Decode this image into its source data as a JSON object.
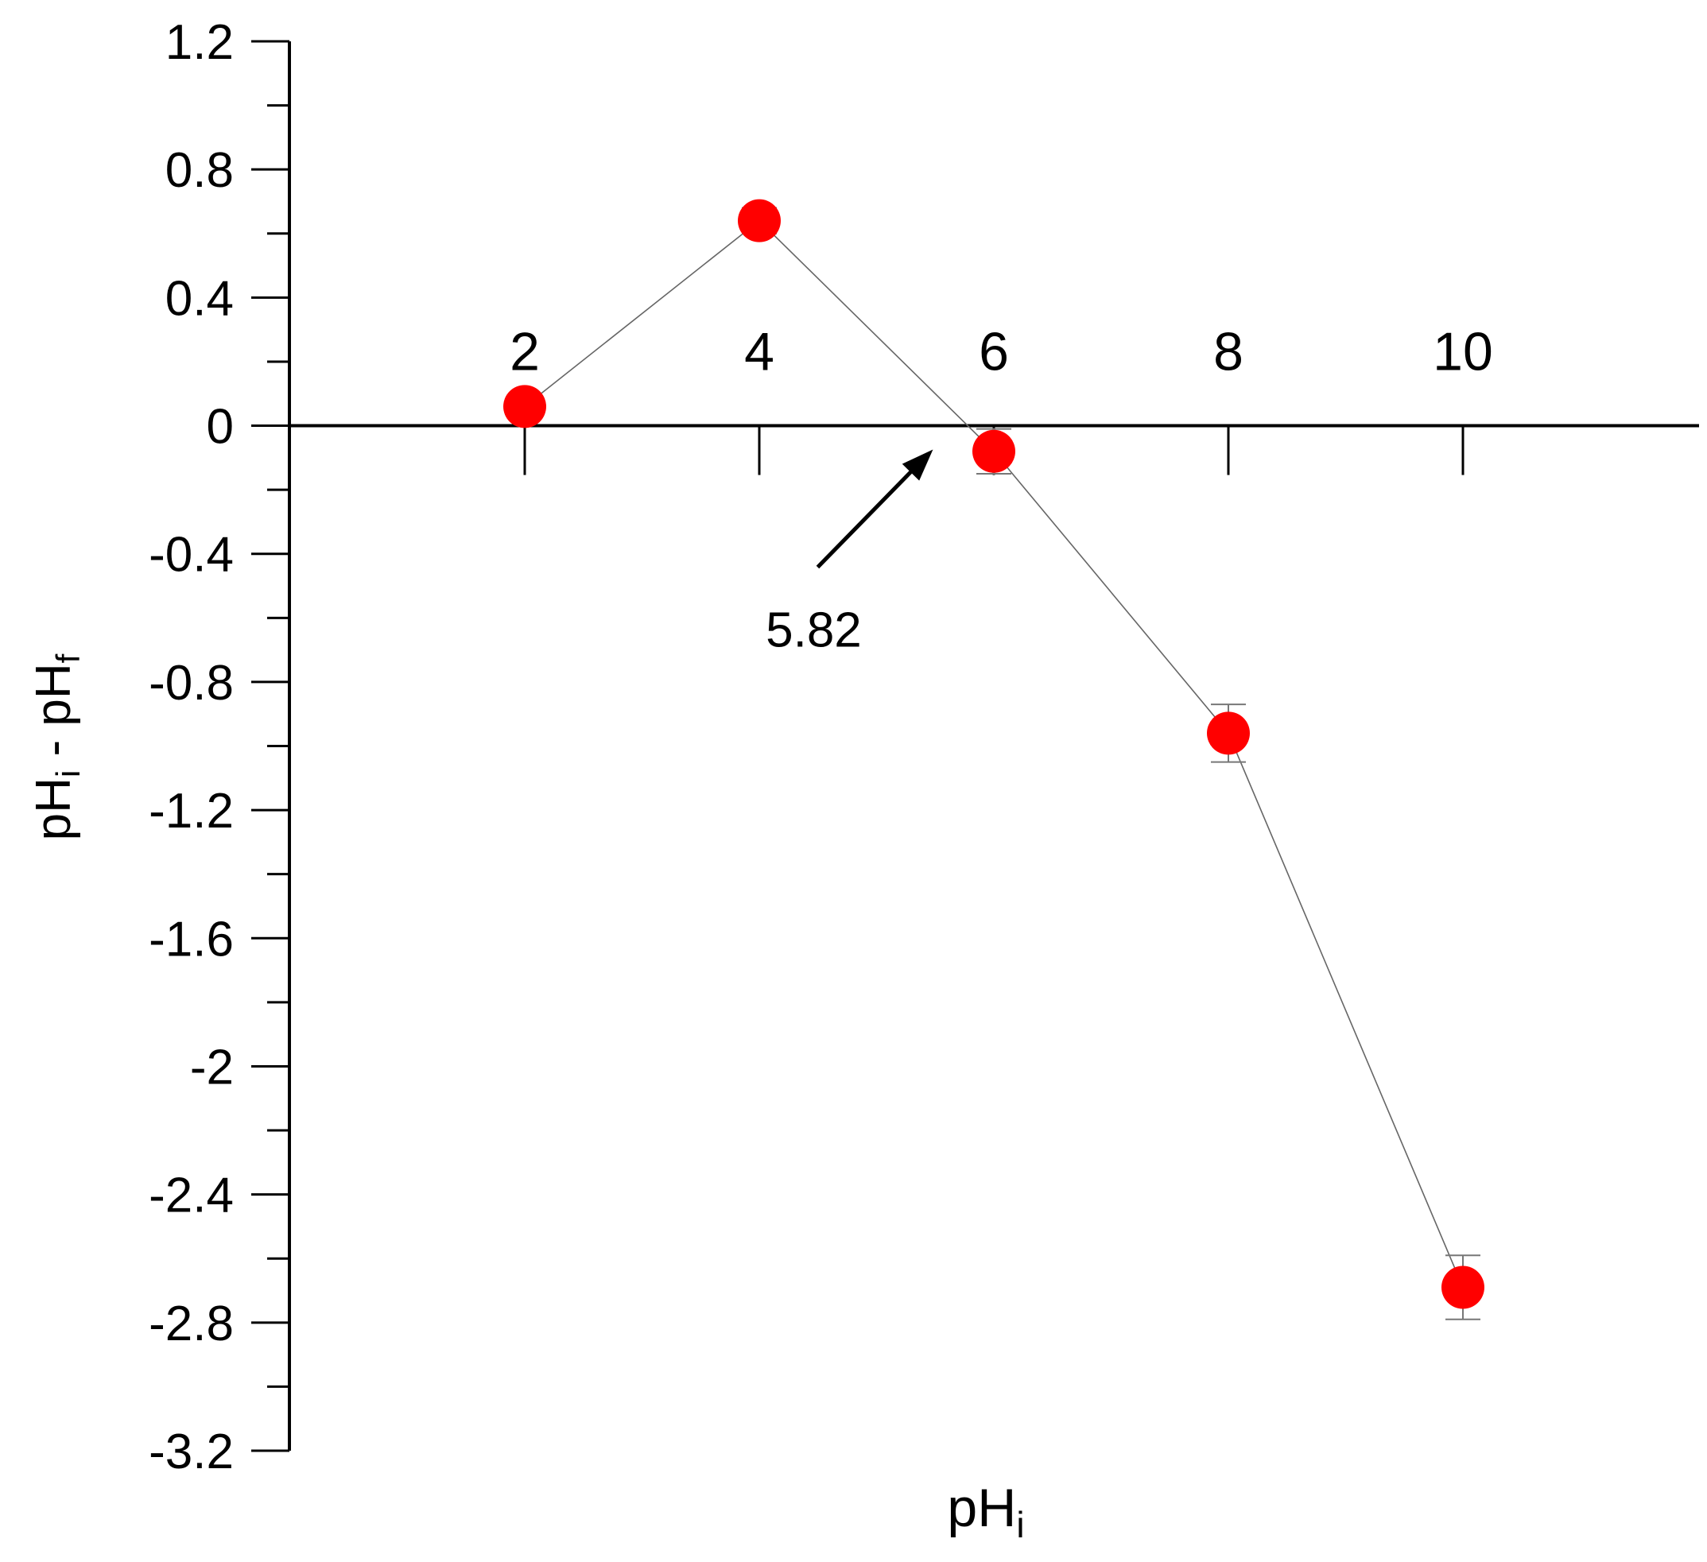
{
  "chart_data": {
    "type": "scatter",
    "title": "",
    "xlabel": "pH",
    "xlabel_sub": "i",
    "ylabel_main": "pH",
    "ylabel_sub1": "i",
    "ylabel_mid": " - pH",
    "ylabel_sub2": "f",
    "xlim": [
      0.8,
      12.8
    ],
    "ylim": [
      -3.2,
      1.2
    ],
    "x_ticks": [
      2,
      4,
      6,
      8,
      10
    ],
    "x_tick_labels": [
      "2",
      "4",
      "6",
      "8",
      "10"
    ],
    "y_ticks": [
      1.2,
      0.8,
      0.4,
      0,
      -0.4,
      -0.8,
      -1.2,
      -1.6,
      -2,
      -2.4,
      -2.8,
      -3.2
    ],
    "y_tick_labels": [
      "1.2",
      "0.8",
      "0.4",
      "0",
      "-0.4",
      "-0.8",
      "-1.2",
      "-1.6",
      "-2",
      "-2.4",
      "-2.8",
      "-3.2"
    ],
    "y_minor_step": 0.2,
    "x_axis_position": 0,
    "grid": false,
    "series": [
      {
        "x": [
          2,
          4,
          6,
          8,
          10
        ],
        "y": [
          0.06,
          0.64,
          -0.08,
          -0.96,
          -2.69
        ],
        "error": [
          0.02,
          0.04,
          0.07,
          0.09,
          0.1
        ],
        "color": "#ff0000",
        "line_color": "#666666"
      }
    ],
    "annotation": {
      "text": "5.82",
      "x": 5.82,
      "y": 0
    }
  }
}
